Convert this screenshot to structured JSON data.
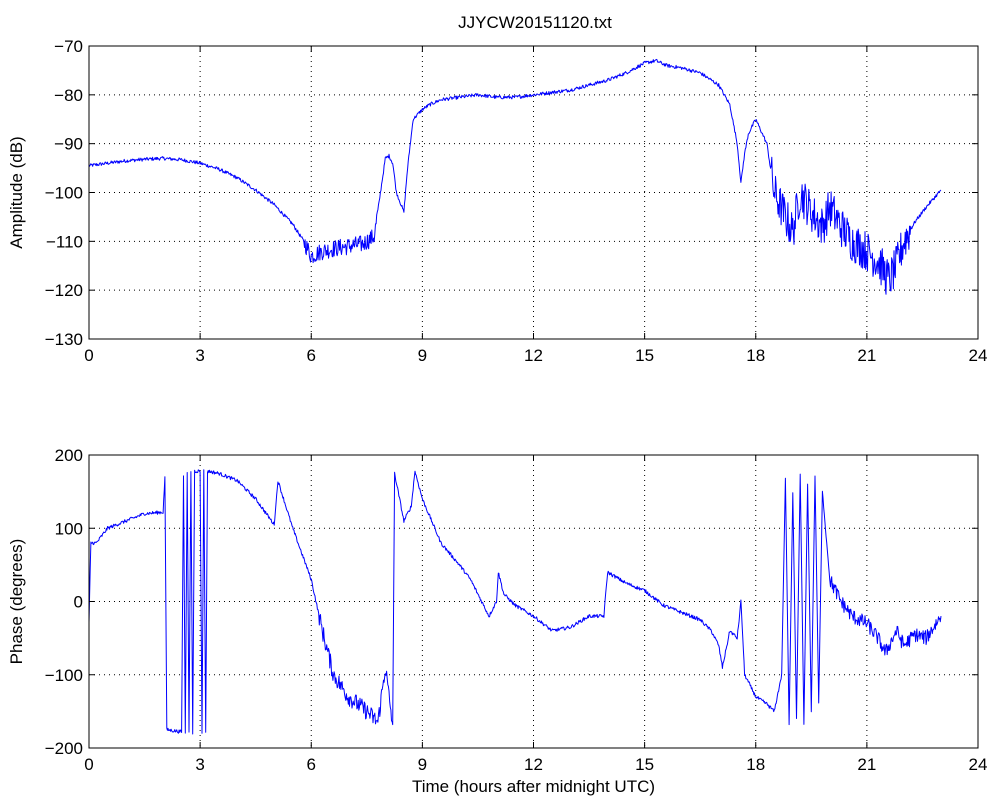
{
  "figure": {
    "title": "JJYCW20151120.txt"
  },
  "chart_data": [
    {
      "type": "line",
      "title": "JJYCW20151120.txt",
      "xlabel": "",
      "ylabel": "Amplitude (dB)",
      "xlim": [
        0,
        24
      ],
      "ylim": [
        -130,
        -70
      ],
      "xticks": [
        0,
        3,
        6,
        9,
        12,
        15,
        18,
        21,
        24
      ],
      "yticks": [
        -130,
        -120,
        -110,
        -100,
        -90,
        -80,
        -70
      ],
      "xtick_labels": [
        "0",
        "3",
        "6",
        "9",
        "12",
        "15",
        "18",
        "21",
        "24"
      ],
      "ytick_labels": [
        "−130",
        "−120",
        "−110",
        "−100",
        "−90",
        "−80",
        "−70"
      ],
      "grid": true,
      "series_color": "#0000ff",
      "x": [
        0,
        0.5,
        1,
        1.5,
        2,
        2.5,
        3,
        3.5,
        4,
        4.5,
        5,
        5.5,
        5.8,
        6,
        6.3,
        6.6,
        7,
        7.4,
        7.7,
        7.85,
        8,
        8.1,
        8.2,
        8.3,
        8.5,
        8.6,
        8.75,
        9,
        9.2,
        9.5,
        10,
        10.5,
        11,
        11.5,
        12,
        12.5,
        13,
        13.5,
        14,
        14.5,
        15,
        15.3,
        15.6,
        16,
        16.5,
        17,
        17.3,
        17.5,
        17.6,
        17.7,
        17.8,
        18,
        18.3,
        18.5,
        18.8,
        19,
        19.2,
        19.5,
        19.8,
        20,
        20.3,
        20.6,
        21,
        21.3,
        21.6,
        21.8,
        22,
        22.3,
        22.6,
        23
      ],
      "values": [
        -94.5,
        -94,
        -93.5,
        -93.2,
        -93,
        -93.3,
        -94,
        -95.2,
        -97,
        -99.5,
        -102.5,
        -106.5,
        -110,
        -113,
        -112,
        -111.5,
        -111,
        -110.5,
        -109,
        -101,
        -93,
        -92.5,
        -94,
        -100,
        -104,
        -95,
        -85,
        -83,
        -82,
        -81,
        -80.5,
        -80,
        -80.5,
        -80.5,
        -80,
        -79.5,
        -79,
        -78,
        -77,
        -75.5,
        -73.5,
        -73,
        -74,
        -74.5,
        -75.5,
        -78,
        -82,
        -90,
        -98,
        -92,
        -88,
        -85,
        -90,
        -100,
        -105,
        -108,
        -100,
        -104,
        -107,
        -103,
        -107,
        -110,
        -112,
        -114,
        -118,
        -115,
        -110,
        -106,
        -103,
        -99.5
      ]
    },
    {
      "type": "line",
      "title": "",
      "xlabel": "Time (hours after midnight UTC)",
      "ylabel": "Phase (degrees)",
      "xlim": [
        0,
        24
      ],
      "ylim": [
        -200,
        200
      ],
      "xticks": [
        0,
        3,
        6,
        9,
        12,
        15,
        18,
        21,
        24
      ],
      "yticks": [
        -200,
        -100,
        0,
        100,
        200
      ],
      "xtick_labels": [
        "0",
        "3",
        "6",
        "9",
        "12",
        "15",
        "18",
        "21",
        "24"
      ],
      "ytick_labels": [
        "−200",
        "−100",
        "0",
        "100",
        "200"
      ],
      "grid": true,
      "series_color": "#0000ff",
      "x": [
        0,
        0.05,
        0.2,
        0.5,
        1,
        1.5,
        2,
        2.05,
        2.1,
        2.5,
        2.55,
        2.6,
        2.65,
        2.7,
        2.75,
        2.8,
        2.85,
        3.0,
        3.05,
        3.1,
        3.15,
        3.2,
        3.5,
        4,
        4.5,
        5,
        5.1,
        5.5,
        6,
        6.3,
        6.6,
        7,
        7.5,
        7.8,
        8,
        8.2,
        8.25,
        8.5,
        8.7,
        8.8,
        9,
        9.5,
        10,
        10.3,
        10.5,
        10.8,
        11,
        11.05,
        11.2,
        11.5,
        12,
        12.5,
        13,
        13.5,
        13.9,
        14,
        14.5,
        15,
        15.5,
        16,
        16.5,
        16.8,
        17,
        17.1,
        17.3,
        17.5,
        17.6,
        17.7,
        18,
        18.3,
        18.5,
        18.7,
        18.8,
        18.9,
        19.0,
        19.1,
        19.2,
        19.3,
        19.4,
        19.5,
        19.6,
        19.7,
        19.8,
        20,
        20.3,
        20.6,
        21,
        21.3,
        21.5,
        21.8,
        22,
        22.3,
        22.6,
        23
      ],
      "values": [
        -30,
        80,
        80,
        100,
        110,
        120,
        122,
        170,
        -175,
        -178,
        170,
        -178,
        175,
        -178,
        178,
        -180,
        178,
        178,
        -178,
        178,
        -178,
        178,
        175,
        165,
        140,
        105,
        165,
        100,
        30,
        -40,
        -100,
        -130,
        -150,
        -165,
        -90,
        -170,
        175,
        110,
        130,
        178,
        140,
        80,
        50,
        30,
        10,
        -20,
        0,
        40,
        10,
        -5,
        -20,
        -40,
        -35,
        -20,
        -20,
        40,
        25,
        15,
        -5,
        -15,
        -25,
        -40,
        -60,
        -90,
        -40,
        -50,
        0,
        -100,
        -130,
        -140,
        -150,
        -100,
        170,
        -170,
        150,
        -160,
        175,
        -170,
        160,
        -150,
        170,
        -140,
        150,
        30,
        0,
        -20,
        -30,
        -50,
        -70,
        -40,
        -60,
        -45,
        -50,
        -20
      ]
    }
  ]
}
